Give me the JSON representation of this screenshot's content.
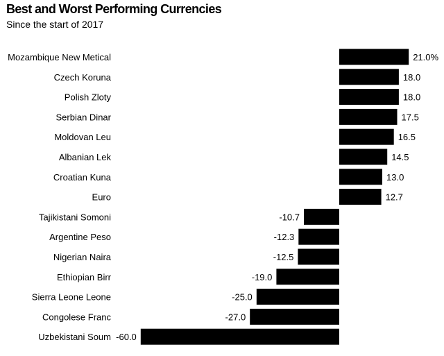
{
  "title": "Best and Worst Performing Currencies",
  "subtitle": "Since the start of 2017",
  "chart_data": {
    "type": "bar",
    "orientation": "horizontal",
    "title": "Best and Worst Performing Currencies",
    "subtitle": "Since the start of 2017",
    "xlabel": "",
    "ylabel": "",
    "xlim": [
      -60,
      21
    ],
    "grid": false,
    "legend": "none",
    "bar_color": "#000000",
    "categories": [
      "Mozambique New Metical",
      "Czech Koruna",
      "Polish Zloty",
      "Serbian Dinar",
      "Moldovan Leu",
      "Albanian Lek",
      "Croatian Kuna",
      "Euro",
      "Tajikistani Somoni",
      "Argentine Peso",
      "Nigerian Naira",
      "Ethiopian Birr",
      "Sierra Leone Leone",
      "Congolese Franc",
      "Uzbekistani Soum"
    ],
    "values": [
      21.0,
      18.0,
      18.0,
      17.5,
      16.5,
      14.5,
      13.0,
      12.7,
      -10.7,
      -12.3,
      -12.5,
      -19.0,
      -25.0,
      -27.0,
      -60.0
    ],
    "value_labels": [
      "21.0%",
      "18.0",
      "18.0",
      "17.5",
      "16.5",
      "14.5",
      "13.0",
      "12.7",
      "-10.7",
      "-12.3",
      "-12.5",
      "-19.0",
      "-25.0",
      "-27.0",
      "-60.0"
    ]
  }
}
